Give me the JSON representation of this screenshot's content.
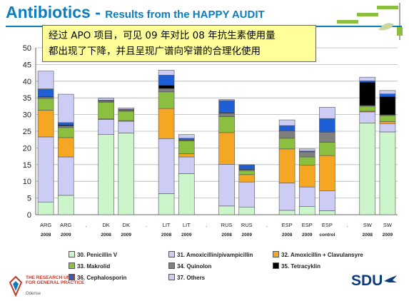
{
  "header": {
    "title_main": "Antibiotics - ",
    "title_sub": "Results from the HAPPY AUDIT"
  },
  "note": {
    "line1": "经过 APO 项目，可见 09 年对比 08 年抗生素使用量",
    "line2": "都出现了下降，并且呈现广谱向窄谱的合理化使用"
  },
  "logos": {
    "left_text_1": "THE RESEARCH UNIT",
    "left_text_2": "FOR GENERAL PRACTICE",
    "left_city": "Odense",
    "right_text": "SDU"
  },
  "colors": {
    "brand_blue": "#0b7dbf",
    "note_bg": "#ffff99"
  },
  "chart_data": {
    "type": "bar",
    "stacked": true,
    "ylim": [
      0,
      50
    ],
    "yticks": [
      0,
      5,
      10,
      15,
      20,
      25,
      30,
      35,
      40,
      45,
      50
    ],
    "grid": true,
    "legend_position": "bottom",
    "categories": [
      {
        "country": "ARG",
        "year": "2008"
      },
      {
        "country": "ARG",
        "year": "2009"
      },
      {
        "country": ".",
        "year": ""
      },
      {
        "country": "DK",
        "year": "2008"
      },
      {
        "country": "DK",
        "year": "2009"
      },
      {
        "country": ".",
        "year": ""
      },
      {
        "country": "LIT",
        "year": "2008"
      },
      {
        "country": "LIT",
        "year": "2009"
      },
      {
        "country": ".",
        "year": ""
      },
      {
        "country": "RUS",
        "year": "2008"
      },
      {
        "country": "RUS",
        "year": "2009"
      },
      {
        "country": ".",
        "year": ""
      },
      {
        "country": "ESP",
        "year": "2008"
      },
      {
        "country": "ESP",
        "year": "2009"
      },
      {
        "country": "ESP",
        "year": "control"
      },
      {
        "country": ".",
        "year": ""
      },
      {
        "country": "SW",
        "year": "2008"
      },
      {
        "country": "SW",
        "year": "2009"
      }
    ],
    "series": [
      {
        "name": "30. Penicillin V",
        "color": "#ccf5cc",
        "values": [
          3.8,
          5.8,
          null,
          24,
          24.5,
          null,
          6.3,
          12.3,
          null,
          2.6,
          2.3,
          null,
          1.3,
          2.5,
          1.2,
          null,
          27.5,
          24.8
        ]
      },
      {
        "name": "31. Amoxicillin/pivampicillin",
        "color": "#ccccf5",
        "values": [
          19.5,
          11.5,
          null,
          4.5,
          3.5,
          null,
          16.5,
          5,
          null,
          12.5,
          7.5,
          null,
          8.2,
          5.8,
          6,
          null,
          3.3,
          2.5
        ]
      },
      {
        "name": "32. Amoxicillin + Clavulansyre",
        "color": "#f5a623",
        "values": [
          8,
          5.8,
          null,
          0.2,
          0.2,
          null,
          9,
          1,
          null,
          9.5,
          2.2,
          null,
          10.2,
          6.5,
          10.5,
          null,
          0.2,
          0.6
        ]
      },
      {
        "name": "33. Makrolid",
        "color": "#8bbf3f",
        "values": [
          3.5,
          3,
          null,
          5,
          2.8,
          null,
          5,
          3.8,
          null,
          4.8,
          1.2,
          null,
          3.2,
          2.5,
          4,
          null,
          1.5,
          1.8
        ]
      },
      {
        "name": "34. Quinolon",
        "color": "#7f7f7f",
        "values": [
          0.4,
          0.5,
          null,
          0.3,
          0.3,
          null,
          1,
          0.2,
          null,
          1,
          0.3,
          null,
          2.2,
          1.5,
          3,
          null,
          0.2,
          0.2
        ]
      },
      {
        "name": "35. Tetracyklin",
        "color": "#000000",
        "values": [
          0.2,
          0.3,
          null,
          0.1,
          0.1,
          null,
          1,
          0.1,
          null,
          0.2,
          0.2,
          null,
          0.1,
          0.1,
          0.1,
          null,
          7,
          5.5
        ]
      },
      {
        "name": "36. Cephalosporin",
        "color": "#1f5fd6",
        "values": [
          2.3,
          0.7,
          null,
          0.2,
          0.2,
          null,
          3,
          0.5,
          null,
          3.6,
          1.3,
          null,
          1.5,
          0.2,
          4,
          null,
          0.4,
          0.8
        ]
      },
      {
        "name": "37. Others",
        "color": "#ccccf5",
        "values": [
          5.3,
          8.5,
          null,
          0.6,
          0.4,
          null,
          1.5,
          1.1,
          null,
          0.3,
          0,
          null,
          1.7,
          0.6,
          3.4,
          null,
          1.1,
          1
        ]
      }
    ]
  }
}
